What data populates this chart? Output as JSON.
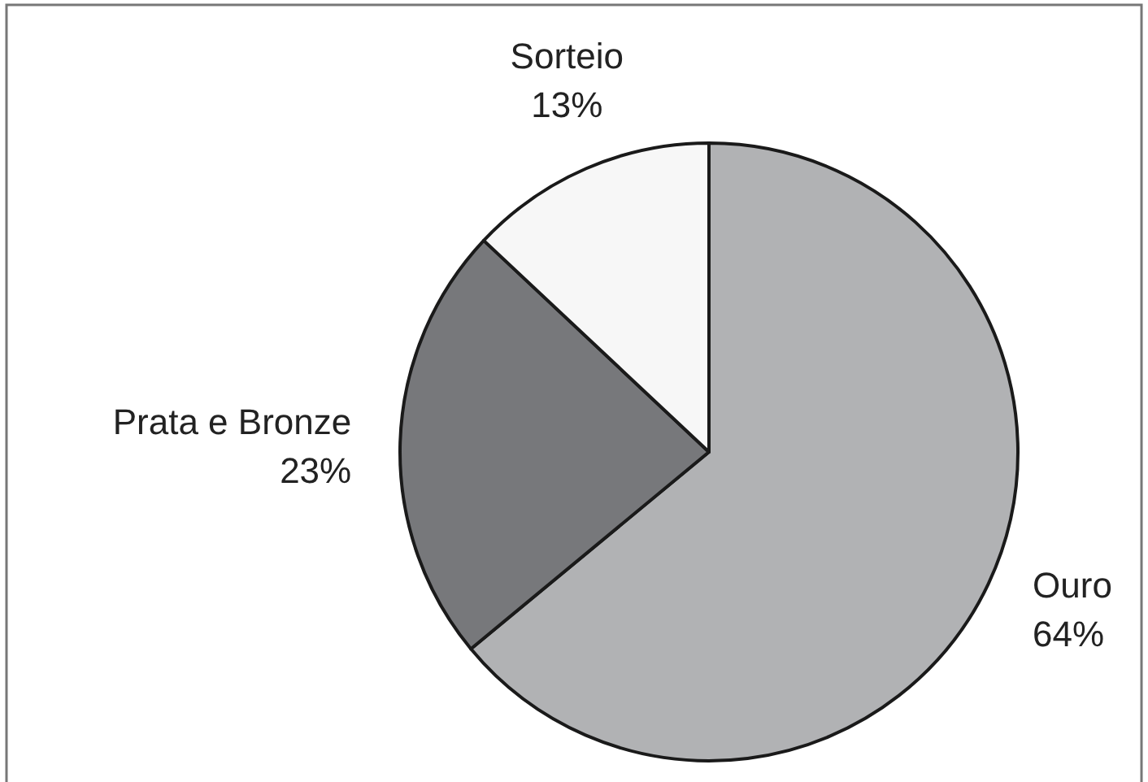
{
  "chart_data": {
    "type": "pie",
    "categories": [
      "Ouro",
      "Prata e Bronze",
      "Sorteio"
    ],
    "values": [
      64,
      23,
      13
    ],
    "colors": [
      "#b1b2b4",
      "#77787b",
      "#f7f7f7"
    ],
    "value_labels": [
      "64%",
      "23%",
      "13%"
    ]
  }
}
